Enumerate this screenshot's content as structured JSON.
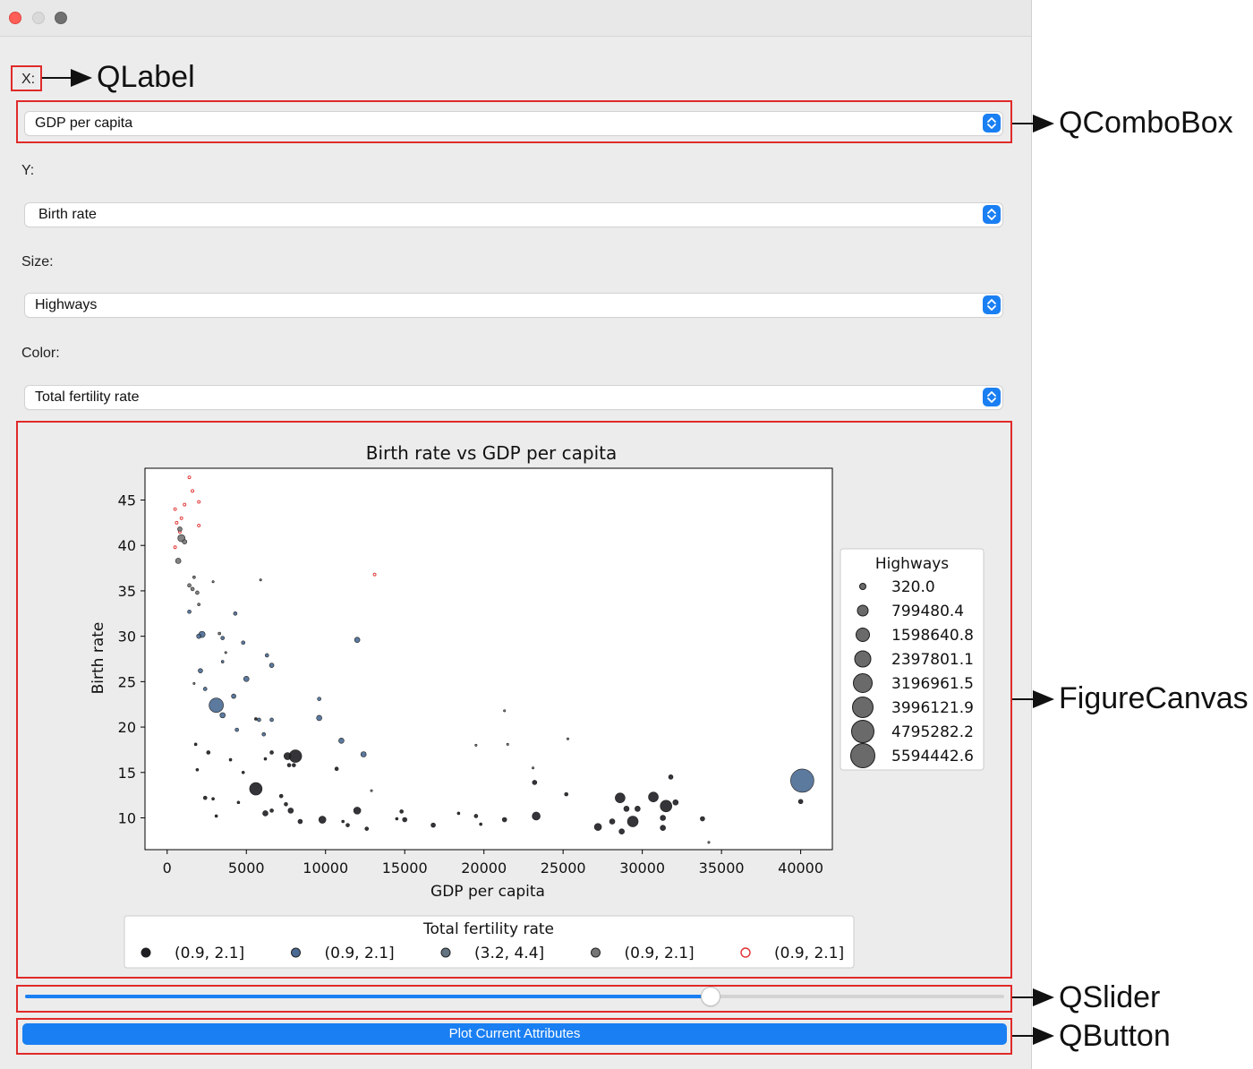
{
  "fields": {
    "x_label": "X:",
    "x_value": "GDP per capita",
    "y_label": "Y:",
    "y_value": "Birth rate",
    "size_label": "Size:",
    "size_value": "Highways",
    "color_label": "Color:",
    "color_value": "Total fertility rate"
  },
  "slider": {
    "value_fraction": 0.7
  },
  "button": {
    "label": "Plot Current Attributes"
  },
  "annotations": {
    "qlabel": "QLabel",
    "qcombobox": "QComboBox",
    "figurecanvas": "FigureCanvas",
    "qslider": "QSlider",
    "qbutton": "QButton"
  },
  "colors": {
    "accent": "#1a7ff2",
    "annotation_red": "#e02a2a"
  },
  "chart_data": {
    "type": "scatter",
    "title": "Birth rate vs GDP per capita",
    "xlabel": "GDP per capita",
    "ylabel": "Birth rate",
    "xlim": [
      -1400,
      42000
    ],
    "ylim": [
      6.5,
      48.5
    ],
    "xticks": [
      0,
      5000,
      10000,
      15000,
      20000,
      25000,
      30000,
      35000,
      40000
    ],
    "yticks": [
      10,
      15,
      20,
      25,
      30,
      35,
      40,
      45
    ],
    "grid": false,
    "size_legend": {
      "title": "Highways",
      "placement": "right",
      "entries": [
        "320.0",
        "799480.4",
        "1598640.8",
        "2397801.1",
        "3196961.5",
        "3996121.9",
        "4795282.2",
        "5594442.6"
      ]
    },
    "color_legend": {
      "title": "Total fertility rate",
      "placement": "bottom",
      "entries": [
        {
          "label": "(0.9, 2.1]",
          "color": "#1e1e24"
        },
        {
          "label": "(0.9, 2.1]",
          "color": "#4a6a94"
        },
        {
          "label": "(3.2, 4.4]",
          "color": "#647382"
        },
        {
          "label": "(0.9, 2.1]",
          "color": "#767676"
        },
        {
          "label": "(0.9, 2.1]",
          "color": "#e03030"
        }
      ]
    },
    "points": [
      {
        "x": 500,
        "y": 44.0,
        "r": 1.5,
        "c": 4
      },
      {
        "x": 600,
        "y": 42.5,
        "r": 1.5,
        "c": 4
      },
      {
        "x": 800,
        "y": 41.5,
        "r": 1.5,
        "c": 4
      },
      {
        "x": 900,
        "y": 43.0,
        "r": 1.5,
        "c": 4
      },
      {
        "x": 1100,
        "y": 44.5,
        "r": 1.5,
        "c": 4
      },
      {
        "x": 1400,
        "y": 47.5,
        "r": 1.5,
        "c": 4
      },
      {
        "x": 1600,
        "y": 46.0,
        "r": 1.5,
        "c": 4
      },
      {
        "x": 2000,
        "y": 44.8,
        "r": 1.5,
        "c": 4
      },
      {
        "x": 2000,
        "y": 42.2,
        "r": 1.5,
        "c": 4
      },
      {
        "x": 500,
        "y": 39.8,
        "r": 1.5,
        "c": 4
      },
      {
        "x": 13100,
        "y": 36.8,
        "r": 1.5,
        "c": 4
      },
      {
        "x": 900,
        "y": 40.8,
        "r": 4,
        "c": 3
      },
      {
        "x": 700,
        "y": 38.3,
        "r": 3,
        "c": 3
      },
      {
        "x": 800,
        "y": 41.8,
        "r": 2.5,
        "c": 3
      },
      {
        "x": 1100,
        "y": 40.4,
        "r": 2.5,
        "c": 3
      },
      {
        "x": 1400,
        "y": 35.6,
        "r": 2,
        "c": 3
      },
      {
        "x": 1600,
        "y": 35.2,
        "r": 2,
        "c": 3
      },
      {
        "x": 1900,
        "y": 34.8,
        "r": 2,
        "c": 3
      },
      {
        "x": 1700,
        "y": 36.5,
        "r": 1.5,
        "c": 3
      },
      {
        "x": 2000,
        "y": 33.5,
        "r": 1.5,
        "c": 3
      },
      {
        "x": 3300,
        "y": 30.3,
        "r": 1.5,
        "c": 3
      },
      {
        "x": 2900,
        "y": 36.0,
        "r": 1.2,
        "c": 3
      },
      {
        "x": 3700,
        "y": 28.2,
        "r": 1.2,
        "c": 3
      },
      {
        "x": 5900,
        "y": 36.2,
        "r": 1.2,
        "c": 3
      },
      {
        "x": 1700,
        "y": 24.8,
        "r": 1.2,
        "c": 3
      },
      {
        "x": 21300,
        "y": 21.8,
        "r": 1.2,
        "c": 3
      },
      {
        "x": 25300,
        "y": 18.7,
        "r": 1.2,
        "c": 3
      },
      {
        "x": 19500,
        "y": 18.0,
        "r": 1.2,
        "c": 3
      },
      {
        "x": 21500,
        "y": 18.1,
        "r": 1.2,
        "c": 3
      },
      {
        "x": 23100,
        "y": 15.5,
        "r": 1.2,
        "c": 3
      },
      {
        "x": 12900,
        "y": 13.0,
        "r": 1.2,
        "c": 3
      },
      {
        "x": 34200,
        "y": 7.3,
        "r": 1.2,
        "c": 3
      },
      {
        "x": 2200,
        "y": 30.2,
        "r": 3.5,
        "c": 1
      },
      {
        "x": 2000,
        "y": 30.0,
        "r": 2.5,
        "c": 1
      },
      {
        "x": 1400,
        "y": 32.7,
        "r": 2,
        "c": 1
      },
      {
        "x": 3500,
        "y": 29.8,
        "r": 2,
        "c": 1
      },
      {
        "x": 3500,
        "y": 27.2,
        "r": 1.5,
        "c": 1
      },
      {
        "x": 4300,
        "y": 32.5,
        "r": 2,
        "c": 1
      },
      {
        "x": 4800,
        "y": 29.3,
        "r": 2,
        "c": 1
      },
      {
        "x": 6300,
        "y": 27.9,
        "r": 2,
        "c": 1
      },
      {
        "x": 6600,
        "y": 26.8,
        "r": 2.5,
        "c": 1
      },
      {
        "x": 12000,
        "y": 29.6,
        "r": 3,
        "c": 1
      },
      {
        "x": 5000,
        "y": 25.3,
        "r": 3,
        "c": 1
      },
      {
        "x": 2100,
        "y": 26.2,
        "r": 2.5,
        "c": 1
      },
      {
        "x": 2400,
        "y": 24.2,
        "r": 2,
        "c": 1
      },
      {
        "x": 3100,
        "y": 22.4,
        "r": 8,
        "c": 1
      },
      {
        "x": 4200,
        "y": 23.4,
        "r": 2.5,
        "c": 1
      },
      {
        "x": 3500,
        "y": 21.3,
        "r": 3,
        "c": 1
      },
      {
        "x": 4400,
        "y": 19.7,
        "r": 2,
        "c": 1
      },
      {
        "x": 5800,
        "y": 20.8,
        "r": 2,
        "c": 1
      },
      {
        "x": 6600,
        "y": 20.8,
        "r": 2,
        "c": 1
      },
      {
        "x": 6100,
        "y": 19.2,
        "r": 2,
        "c": 1
      },
      {
        "x": 9600,
        "y": 23.1,
        "r": 2,
        "c": 1
      },
      {
        "x": 9600,
        "y": 21.0,
        "r": 3,
        "c": 1
      },
      {
        "x": 11000,
        "y": 18.5,
        "r": 3,
        "c": 1
      },
      {
        "x": 12400,
        "y": 17.0,
        "r": 3,
        "c": 1
      },
      {
        "x": 40100,
        "y": 14.1,
        "r": 13,
        "c": 1
      },
      {
        "x": 1800,
        "y": 18.1,
        "r": 1.5,
        "c": 0
      },
      {
        "x": 2600,
        "y": 17.2,
        "r": 2,
        "c": 0
      },
      {
        "x": 1900,
        "y": 15.3,
        "r": 1.5,
        "c": 0
      },
      {
        "x": 4000,
        "y": 16.4,
        "r": 1.5,
        "c": 0
      },
      {
        "x": 4800,
        "y": 15.0,
        "r": 1.5,
        "c": 0
      },
      {
        "x": 5600,
        "y": 20.9,
        "r": 1.5,
        "c": 0
      },
      {
        "x": 6200,
        "y": 16.5,
        "r": 1.5,
        "c": 0
      },
      {
        "x": 6600,
        "y": 17.2,
        "r": 2,
        "c": 0
      },
      {
        "x": 7600,
        "y": 16.8,
        "r": 4,
        "c": 0
      },
      {
        "x": 8100,
        "y": 16.8,
        "r": 7,
        "c": 0
      },
      {
        "x": 8000,
        "y": 15.8,
        "r": 2,
        "c": 0
      },
      {
        "x": 7700,
        "y": 15.8,
        "r": 2,
        "c": 0
      },
      {
        "x": 10700,
        "y": 15.4,
        "r": 2,
        "c": 0
      },
      {
        "x": 5600,
        "y": 13.2,
        "r": 7,
        "c": 0
      },
      {
        "x": 2400,
        "y": 12.2,
        "r": 2,
        "c": 0
      },
      {
        "x": 2900,
        "y": 12.1,
        "r": 1.5,
        "c": 0
      },
      {
        "x": 3100,
        "y": 10.2,
        "r": 1.5,
        "c": 0
      },
      {
        "x": 4500,
        "y": 11.7,
        "r": 1.5,
        "c": 0
      },
      {
        "x": 6200,
        "y": 10.5,
        "r": 3,
        "c": 0
      },
      {
        "x": 6600,
        "y": 10.8,
        "r": 2,
        "c": 0
      },
      {
        "x": 7200,
        "y": 12.4,
        "r": 2,
        "c": 0
      },
      {
        "x": 7500,
        "y": 11.5,
        "r": 2,
        "c": 0
      },
      {
        "x": 7800,
        "y": 10.8,
        "r": 3,
        "c": 0
      },
      {
        "x": 8400,
        "y": 9.6,
        "r": 2.5,
        "c": 0
      },
      {
        "x": 9800,
        "y": 9.8,
        "r": 4,
        "c": 0
      },
      {
        "x": 11100,
        "y": 9.6,
        "r": 1.5,
        "c": 0
      },
      {
        "x": 11400,
        "y": 9.2,
        "r": 2,
        "c": 0
      },
      {
        "x": 12000,
        "y": 10.8,
        "r": 4,
        "c": 0
      },
      {
        "x": 12600,
        "y": 8.8,
        "r": 2,
        "c": 0
      },
      {
        "x": 14800,
        "y": 10.7,
        "r": 2,
        "c": 0
      },
      {
        "x": 15000,
        "y": 9.8,
        "r": 2.5,
        "c": 0
      },
      {
        "x": 14500,
        "y": 9.9,
        "r": 1.5,
        "c": 0
      },
      {
        "x": 16800,
        "y": 9.2,
        "r": 2.5,
        "c": 0
      },
      {
        "x": 18400,
        "y": 10.5,
        "r": 1.5,
        "c": 0
      },
      {
        "x": 19500,
        "y": 10.2,
        "r": 2,
        "c": 0
      },
      {
        "x": 19800,
        "y": 9.3,
        "r": 1.5,
        "c": 0
      },
      {
        "x": 21300,
        "y": 9.8,
        "r": 2.5,
        "c": 0
      },
      {
        "x": 23300,
        "y": 10.2,
        "r": 4.5,
        "c": 0
      },
      {
        "x": 23200,
        "y": 13.9,
        "r": 2.5,
        "c": 0
      },
      {
        "x": 25200,
        "y": 12.6,
        "r": 2,
        "c": 0
      },
      {
        "x": 27200,
        "y": 9.0,
        "r": 4,
        "c": 0
      },
      {
        "x": 28100,
        "y": 9.6,
        "r": 3,
        "c": 0
      },
      {
        "x": 28600,
        "y": 12.2,
        "r": 5.5,
        "c": 0
      },
      {
        "x": 28700,
        "y": 8.5,
        "r": 3,
        "c": 0
      },
      {
        "x": 29000,
        "y": 11.0,
        "r": 3,
        "c": 0
      },
      {
        "x": 29400,
        "y": 9.6,
        "r": 6,
        "c": 0
      },
      {
        "x": 29700,
        "y": 11.0,
        "r": 3,
        "c": 0
      },
      {
        "x": 30700,
        "y": 12.3,
        "r": 5.5,
        "c": 0
      },
      {
        "x": 31300,
        "y": 10.0,
        "r": 3,
        "c": 0
      },
      {
        "x": 31500,
        "y": 11.3,
        "r": 6.5,
        "c": 0
      },
      {
        "x": 31300,
        "y": 8.9,
        "r": 3,
        "c": 0
      },
      {
        "x": 31800,
        "y": 14.5,
        "r": 2.5,
        "c": 0
      },
      {
        "x": 32100,
        "y": 11.7,
        "r": 3,
        "c": 0
      },
      {
        "x": 33800,
        "y": 9.9,
        "r": 2.5,
        "c": 0
      },
      {
        "x": 40000,
        "y": 11.8,
        "r": 2.5,
        "c": 0
      }
    ]
  }
}
